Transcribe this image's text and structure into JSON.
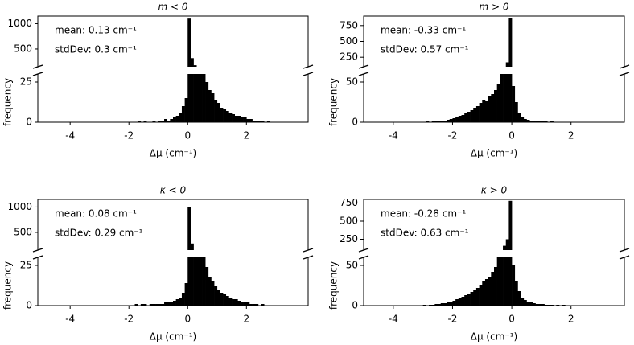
{
  "chart_data": [
    {
      "type": "histogram",
      "title": "m < 0",
      "annotations": [
        "mean: 0.13 cm⁻¹",
        "stdDev: 0.3 cm⁻¹"
      ],
      "xlabel": "Δμ (cm⁻¹)",
      "ylabel": "frequency",
      "color": "#000000",
      "bins": [
        -3,
        -2.9,
        -2.8,
        -2.7,
        -2.6,
        -2.5,
        -2.4,
        -2.3,
        -2.2,
        -2.1,
        -2,
        -1.9,
        -1.8,
        -1.7,
        -1.6,
        -1.5,
        -1.4,
        -1.3,
        -1.2,
        -1.1,
        -1,
        -0.9,
        -0.8,
        -0.7,
        -0.6,
        -0.5,
        -0.4,
        -0.3,
        -0.2,
        -0.1,
        0,
        0.1,
        0.2,
        0.3,
        0.4,
        0.5,
        0.6,
        0.7,
        0.8,
        0.9,
        1,
        1.1,
        1.2,
        1.3,
        1.4,
        1.5,
        1.6,
        1.7,
        1.8,
        1.9,
        2,
        2.1,
        2.2,
        2.3,
        2.4,
        2.5,
        2.6,
        2.7,
        2.8,
        2.9,
        3
      ],
      "counts": [
        0,
        0,
        0,
        0,
        0,
        0,
        0,
        0,
        0,
        0,
        0,
        0,
        0,
        1,
        0,
        1,
        0,
        0,
        1,
        0,
        1,
        1,
        2,
        1,
        2,
        3,
        4,
        6,
        10,
        15,
        1100,
        320,
        180,
        90,
        45,
        30,
        25,
        20,
        18,
        14,
        12,
        9,
        8,
        7,
        6,
        5,
        4,
        4,
        3,
        3,
        2,
        2,
        1,
        1,
        1,
        1,
        0,
        1,
        0,
        0
      ],
      "xlim": [
        -5.1,
        4.1
      ],
      "xticks": [
        -4,
        -2,
        0,
        2
      ],
      "ylim_lower": [
        0,
        30
      ],
      "yticks_lower": [
        0,
        25
      ],
      "ylim_upper": [
        150,
        1150
      ],
      "yticks_upper": [
        500,
        1000
      ]
    },
    {
      "type": "histogram",
      "title": "m > 0",
      "annotations": [
        "mean: -0.33 cm⁻¹",
        "stdDev: 0.57 cm⁻¹"
      ],
      "xlabel": "Δμ (cm⁻¹)",
      "ylabel": "frequency",
      "color": "#000000",
      "bins": [
        -3,
        -2.9,
        -2.8,
        -2.7,
        -2.6,
        -2.5,
        -2.4,
        -2.3,
        -2.2,
        -2.1,
        -2,
        -1.9,
        -1.8,
        -1.7,
        -1.6,
        -1.5,
        -1.4,
        -1.3,
        -1.2,
        -1.1,
        -1,
        -0.9,
        -0.8,
        -0.7,
        -0.6,
        -0.5,
        -0.4,
        -0.3,
        -0.2,
        -0.1,
        0,
        0.1,
        0.2,
        0.3,
        0.4,
        0.5,
        0.6,
        0.7,
        0.8,
        0.9,
        1,
        1.1,
        1.2,
        1.3,
        1.4,
        1.5,
        1.6,
        1.7,
        1.8,
        1.9,
        2,
        2.1,
        2.2,
        2.3,
        2.4,
        2.5,
        2.6,
        2.7,
        2.8,
        2.9,
        3
      ],
      "counts": [
        0,
        1,
        0,
        1,
        1,
        1,
        2,
        2,
        3,
        4,
        5,
        6,
        8,
        9,
        11,
        13,
        15,
        18,
        20,
        24,
        28,
        26,
        33,
        35,
        40,
        48,
        60,
        90,
        170,
        870,
        45,
        25,
        12,
        6,
        4,
        3,
        2,
        2,
        1,
        1,
        1,
        1,
        0,
        1,
        0,
        0,
        0,
        0,
        0,
        0,
        0,
        0,
        0,
        0,
        0,
        0,
        0,
        0,
        0,
        0
      ],
      "xlim": [
        -5,
        3.8
      ],
      "xticks": [
        -4,
        -2,
        0,
        2
      ],
      "ylim_lower": [
        0,
        60
      ],
      "yticks_lower": [
        0,
        50
      ],
      "ylim_upper": [
        100,
        900
      ],
      "yticks_upper": [
        250,
        500,
        750
      ]
    },
    {
      "type": "histogram",
      "title": "κ < 0",
      "annotations": [
        "mean: 0.08 cm⁻¹",
        "stdDev: 0.29 cm⁻¹"
      ],
      "xlabel": "Δμ (cm⁻¹)",
      "ylabel": "frequency",
      "color": "#000000",
      "bins": [
        -3,
        -2.9,
        -2.8,
        -2.7,
        -2.6,
        -2.5,
        -2.4,
        -2.3,
        -2.2,
        -2.1,
        -2,
        -1.9,
        -1.8,
        -1.7,
        -1.6,
        -1.5,
        -1.4,
        -1.3,
        -1.2,
        -1.1,
        -1,
        -0.9,
        -0.8,
        -0.7,
        -0.6,
        -0.5,
        -0.4,
        -0.3,
        -0.2,
        -0.1,
        0,
        0.1,
        0.2,
        0.3,
        0.4,
        0.5,
        0.6,
        0.7,
        0.8,
        0.9,
        1,
        1.1,
        1.2,
        1.3,
        1.4,
        1.5,
        1.6,
        1.7,
        1.8,
        1.9,
        2,
        2.1,
        2.2,
        2.3,
        2.4,
        2.5,
        2.6,
        2.7,
        2.8,
        2.9,
        3
      ],
      "counts": [
        0,
        0,
        0,
        0,
        0,
        0,
        0,
        0,
        0,
        0,
        0,
        0,
        1,
        0,
        1,
        1,
        0,
        1,
        1,
        1,
        1,
        1,
        2,
        2,
        2,
        3,
        4,
        5,
        8,
        14,
        1000,
        280,
        150,
        80,
        45,
        30,
        24,
        18,
        15,
        12,
        10,
        8,
        7,
        6,
        5,
        4,
        4,
        3,
        2,
        2,
        2,
        1,
        1,
        1,
        0,
        1,
        0,
        0,
        0,
        0
      ],
      "xlim": [
        -5.1,
        4.1
      ],
      "xticks": [
        -4,
        -2,
        0,
        2
      ],
      "ylim_lower": [
        0,
        30
      ],
      "yticks_lower": [
        0,
        25
      ],
      "ylim_upper": [
        150,
        1150
      ],
      "yticks_upper": [
        500,
        1000
      ]
    },
    {
      "type": "histogram",
      "title": "κ > 0",
      "annotations": [
        "mean: -0.28 cm⁻¹",
        "stdDev: 0.63 cm⁻¹"
      ],
      "xlabel": "Δμ (cm⁻¹)",
      "ylabel": "frequency",
      "color": "#000000",
      "bins": [
        -3,
        -2.9,
        -2.8,
        -2.7,
        -2.6,
        -2.5,
        -2.4,
        -2.3,
        -2.2,
        -2.1,
        -2,
        -1.9,
        -1.8,
        -1.7,
        -1.6,
        -1.5,
        -1.4,
        -1.3,
        -1.2,
        -1.1,
        -1,
        -0.9,
        -0.8,
        -0.7,
        -0.6,
        -0.5,
        -0.4,
        -0.3,
        -0.2,
        -0.1,
        0,
        0.1,
        0.2,
        0.3,
        0.4,
        0.5,
        0.6,
        0.7,
        0.8,
        0.9,
        1,
        1.1,
        1.2,
        1.3,
        1.4,
        1.5,
        1.6,
        1.7,
        1.8,
        1.9,
        2,
        2.1,
        2.2,
        2.3,
        2.4,
        2.5,
        2.6,
        2.7,
        2.8,
        2.9,
        3
      ],
      "counts": [
        1,
        0,
        1,
        1,
        2,
        2,
        3,
        3,
        4,
        5,
        6,
        8,
        9,
        11,
        13,
        15,
        17,
        20,
        22,
        26,
        30,
        33,
        36,
        42,
        48,
        60,
        100,
        160,
        250,
        780,
        50,
        30,
        18,
        10,
        7,
        5,
        4,
        3,
        2,
        2,
        2,
        1,
        1,
        1,
        0,
        1,
        0,
        1,
        0,
        0,
        0,
        0,
        0,
        0,
        0,
        0,
        0,
        0,
        0,
        0
      ],
      "xlim": [
        -5,
        3.8
      ],
      "xticks": [
        -4,
        -2,
        0,
        2
      ],
      "ylim_lower": [
        0,
        60
      ],
      "yticks_lower": [
        0,
        50
      ],
      "ylim_upper": [
        100,
        800
      ],
      "yticks_upper": [
        250,
        500,
        750
      ]
    }
  ]
}
